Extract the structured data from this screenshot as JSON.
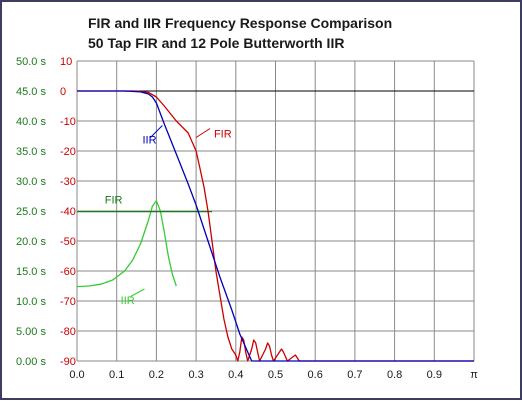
{
  "title_line1": "FIR and IIR Frequency Response Comparison",
  "title_line2": "50 Tap FIR  and  12 Pole Butterworth IIR",
  "chart_data": {
    "type": "line",
    "x_ticks": [
      "0.0",
      "0.1",
      "0.2",
      "0.3",
      "0.4",
      "0.5",
      "0.6",
      "0.7",
      "0.8",
      "0.9",
      "π"
    ],
    "xlim": [
      0,
      1
    ],
    "left_axis_ticks": [
      "0.00 s",
      "5.00 s",
      "10.0 s",
      "15.0 s",
      "20.0 s",
      "25.0 s",
      "30.0 s",
      "35.0 s",
      "40.0 s",
      "45.0 s",
      "50.0 s"
    ],
    "left_axis_range": [
      0,
      50
    ],
    "right_axis_ticks": [
      "-90",
      "-80",
      "-70",
      "-60",
      "-50",
      "-40",
      "-30",
      "-20",
      "-10",
      "0",
      "10"
    ],
    "right_axis_range": [
      -90,
      10
    ],
    "grid": true,
    "annotations": [
      {
        "text": "FIR",
        "color": "#cc0000",
        "x": 0.345,
        "y_db": -14.2
      },
      {
        "text": "IIR",
        "color": "#0000bb",
        "x": 0.165,
        "y_db": -16.2
      },
      {
        "text": "FIR",
        "color": "#1a7a1a",
        "x": 0.07,
        "y_db": -36.2
      },
      {
        "text": "IIR",
        "color": "#33cc33",
        "x": 0.11,
        "y_db": -69.6
      }
    ],
    "series": [
      {
        "color": "#cc0000",
        "axis": "right",
        "points": [
          [
            0,
            0
          ],
          [
            0.1,
            0
          ],
          [
            0.15,
            0
          ],
          [
            0.18,
            -0.5
          ],
          [
            0.2,
            -2
          ],
          [
            0.22,
            -5
          ],
          [
            0.25,
            -10
          ],
          [
            0.28,
            -14
          ],
          [
            0.3,
            -20
          ],
          [
            0.31,
            -26
          ],
          [
            0.32,
            -32
          ],
          [
            0.33,
            -40
          ],
          [
            0.34,
            -50
          ],
          [
            0.35,
            -60
          ],
          [
            0.36,
            -68
          ],
          [
            0.37,
            -76
          ],
          [
            0.38,
            -82
          ],
          [
            0.39,
            -86
          ],
          [
            0.4,
            -88
          ],
          [
            0.405,
            -90
          ],
          [
            0.41,
            -87
          ],
          [
            0.415,
            -82
          ],
          [
            0.42,
            -83
          ],
          [
            0.425,
            -87
          ],
          [
            0.43,
            -90
          ],
          [
            0.44,
            -86
          ],
          [
            0.445,
            -83
          ],
          [
            0.45,
            -84
          ],
          [
            0.455,
            -87
          ],
          [
            0.46,
            -90
          ],
          [
            0.475,
            -86
          ],
          [
            0.48,
            -84
          ],
          [
            0.485,
            -85
          ],
          [
            0.49,
            -88
          ],
          [
            0.495,
            -90
          ],
          [
            0.51,
            -87
          ],
          [
            0.515,
            -86
          ],
          [
            0.52,
            -87
          ],
          [
            0.53,
            -90
          ],
          [
            0.55,
            -88
          ],
          [
            0.56,
            -90
          ],
          [
            1.0,
            -90
          ]
        ]
      },
      {
        "color": "#0000bb",
        "axis": "right",
        "points": [
          [
            0,
            0
          ],
          [
            0.12,
            0
          ],
          [
            0.16,
            -0.3
          ],
          [
            0.18,
            -1
          ],
          [
            0.19,
            -2
          ],
          [
            0.2,
            -4
          ],
          [
            0.22,
            -11
          ],
          [
            0.25,
            -21
          ],
          [
            0.28,
            -31
          ],
          [
            0.3,
            -38
          ],
          [
            0.33,
            -50
          ],
          [
            0.36,
            -62
          ],
          [
            0.39,
            -73
          ],
          [
            0.41,
            -81
          ],
          [
            0.43,
            -87
          ],
          [
            0.44,
            -90
          ],
          [
            1.0,
            -90
          ]
        ]
      },
      {
        "color": "#1a7a1a",
        "axis": "left",
        "points": [
          [
            0,
            24.9
          ],
          [
            0.34,
            24.9
          ]
        ]
      },
      {
        "color": "#33cc33",
        "axis": "left",
        "points": [
          [
            0,
            12.4
          ],
          [
            0.03,
            12.5
          ],
          [
            0.06,
            12.8
          ],
          [
            0.09,
            13.5
          ],
          [
            0.12,
            15
          ],
          [
            0.14,
            16.8
          ],
          [
            0.16,
            19.5
          ],
          [
            0.18,
            23.5
          ],
          [
            0.19,
            25.8
          ],
          [
            0.2,
            26.7
          ],
          [
            0.21,
            25
          ],
          [
            0.22,
            21.5
          ],
          [
            0.23,
            17.5
          ],
          [
            0.24,
            14.5
          ],
          [
            0.25,
            12.5
          ]
        ]
      }
    ]
  }
}
